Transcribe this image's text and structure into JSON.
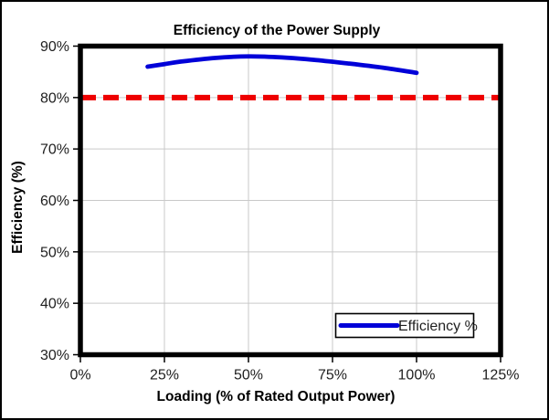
{
  "chart_data": {
    "type": "line",
    "title": "Efficiency of the Power Supply",
    "xlabel": "Loading (% of Rated Output Power)",
    "ylabel": "Efficiency (%)",
    "xlim": [
      0,
      125
    ],
    "ylim": [
      30,
      90
    ],
    "x_ticks": [
      0,
      25,
      50,
      75,
      100,
      125
    ],
    "x_tick_labels": [
      "0%",
      "25%",
      "50%",
      "75%",
      "100%",
      "125%"
    ],
    "y_ticks": [
      30,
      40,
      50,
      60,
      70,
      80,
      90
    ],
    "y_tick_labels": [
      "30%",
      "40%",
      "50%",
      "60%",
      "70%",
      "80%",
      "90%"
    ],
    "grid": true,
    "legend_position": "inside-bottom-right",
    "series": [
      {
        "name": "Efficiency %",
        "color": "#0000d8",
        "style": "solid",
        "x": [
          20,
          25,
          30,
          40,
          50,
          60,
          70,
          80,
          90,
          100
        ],
        "y": [
          86.0,
          86.5,
          87.0,
          87.7,
          88.0,
          87.8,
          87.3,
          86.6,
          85.8,
          84.8
        ]
      }
    ],
    "reference_line": {
      "y": 80,
      "color": "#ee0000",
      "style": "dashed",
      "label": ""
    }
  },
  "colors": {
    "plot_border": "#000000",
    "gridline": "#c9c9c9",
    "series_blue": "#0000d8",
    "reference_red": "#ee0000",
    "background": "#ffffff"
  }
}
